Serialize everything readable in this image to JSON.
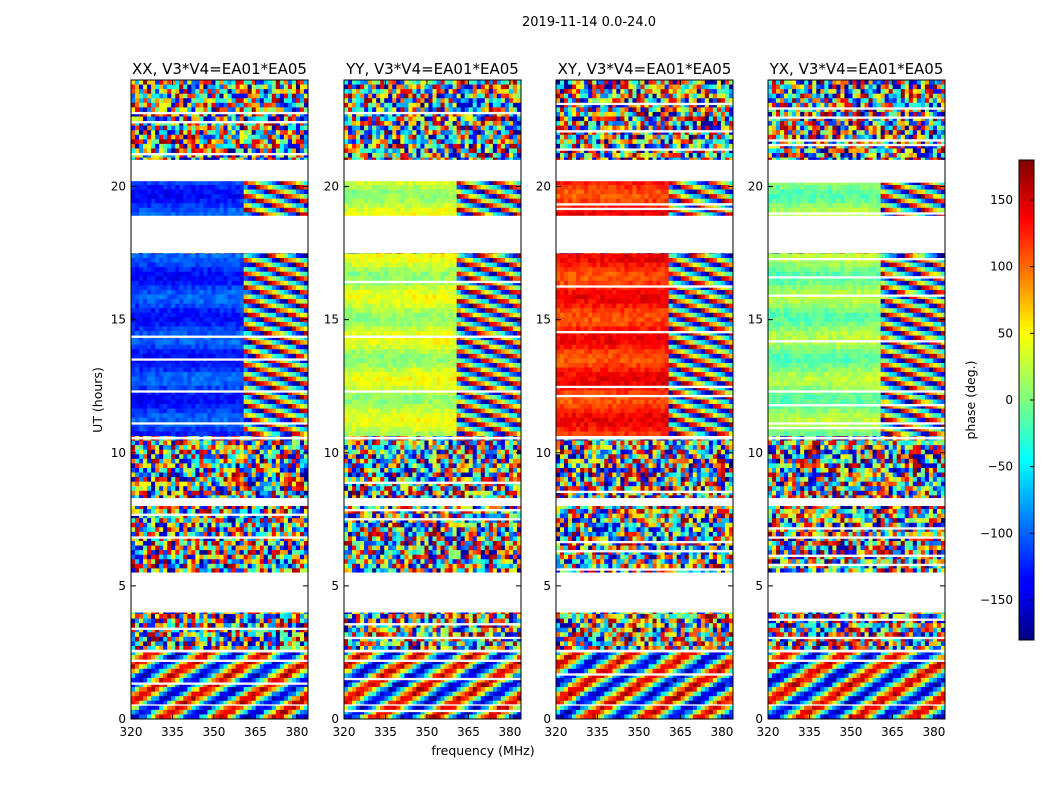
{
  "suptitle": "2019-11-14 0.0-24.0",
  "colors": {
    "frame": "#000000",
    "background": "#ffffff"
  },
  "chart_data": {
    "type": "heatmap",
    "colormap": "jet",
    "x_ticks": [
      320,
      335,
      350,
      365,
      380
    ],
    "x_range": [
      320,
      384
    ],
    "y_ticks": [
      0,
      5,
      10,
      15,
      20
    ],
    "y_range": [
      0,
      24
    ],
    "xlabel": "frequency (MHz)",
    "ylabel": "UT (hours)",
    "colorbar": {
      "label": "phase (deg.)",
      "range": [
        -180,
        180
      ],
      "ticks": [
        150,
        100,
        50,
        0,
        -50,
        -100,
        -150
      ],
      "tick_labels": [
        "150",
        "100",
        "50",
        "0",
        "−50",
        "−100",
        "−150"
      ]
    },
    "data_gaps_hours": [
      [
        0.5,
        0.55
      ],
      [
        2.5,
        2.6
      ],
      [
        4.0,
        5.5
      ],
      [
        8.0,
        8.3
      ],
      [
        10.5,
        10.6
      ],
      [
        17.5,
        18.9
      ],
      [
        20.2,
        21.0
      ]
    ],
    "panels": [
      {
        "title": "XX, V3*V4=EA01*EA05",
        "phase_smooth_deg": -120
      },
      {
        "title": "YY, V3*V4=EA01*EA05",
        "phase_smooth_deg": 20
      },
      {
        "title": "XY, V3*V4=EA01*EA05",
        "phase_smooth_deg": 120
      },
      {
        "title": "YX, V3*V4=EA01*EA05",
        "phase_smooth_deg": 0
      }
    ]
  }
}
